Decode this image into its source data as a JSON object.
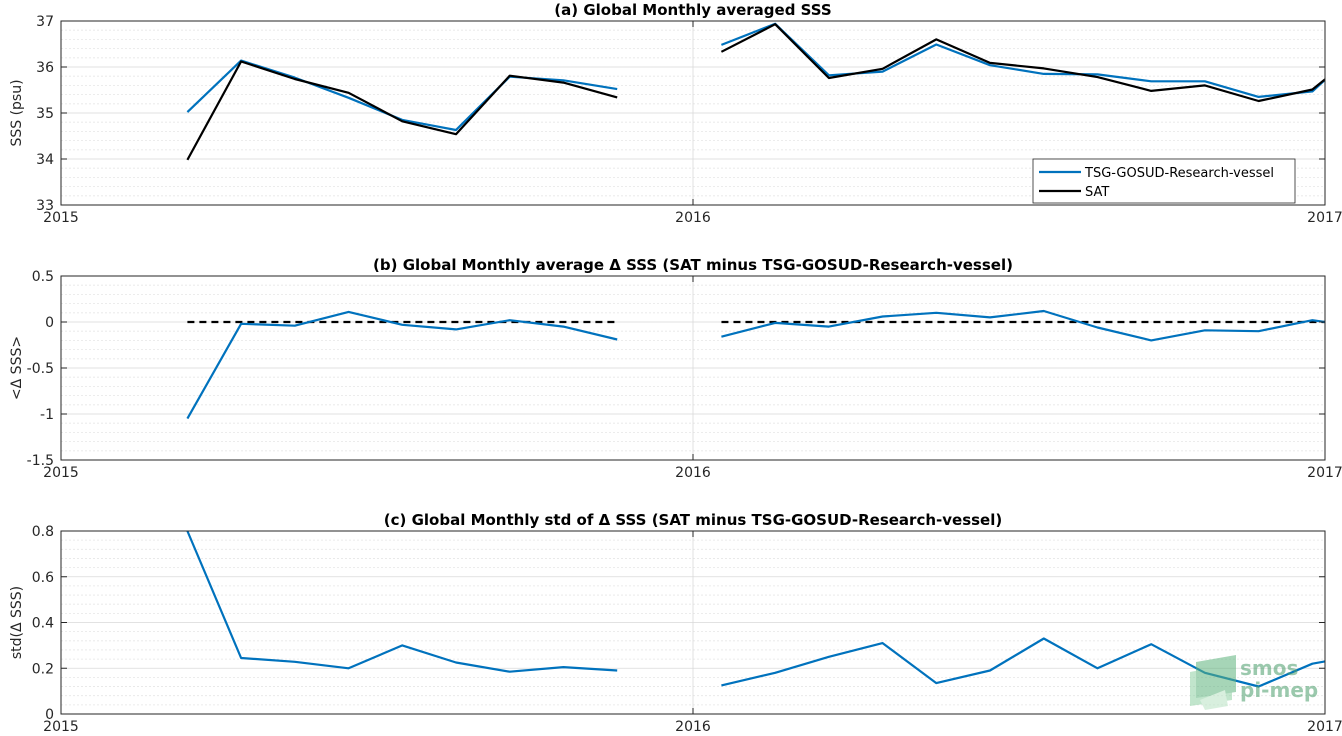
{
  "colors": {
    "tsg": "#0072BD",
    "sat": "#000000",
    "zero": "#000000",
    "grid": "#d9d9d9",
    "logo": "#4a9d6b"
  },
  "logo": {
    "line1": "smos",
    "line2": "pi-mep"
  },
  "chart_data": [
    {
      "id": "a",
      "type": "line",
      "title": "(a) Global Monthly averaged SSS",
      "ylabel": "SSS (psu)",
      "xlabel": "",
      "xlim": [
        2015,
        2017
      ],
      "ylim": [
        33,
        37
      ],
      "xticks": [
        2015,
        2016,
        2017
      ],
      "xtick_labels": [
        "2015",
        "2016",
        "2017"
      ],
      "yticks": [
        33,
        34,
        35,
        36,
        37
      ],
      "ytick_labels": [
        "33",
        "34",
        "35",
        "36",
        "37"
      ],
      "grid": "on",
      "legend": {
        "location": "bottom-right",
        "entries": [
          "TSG-GOSUD-Research-vessel",
          "SAT"
        ]
      },
      "series": [
        {
          "name": "TSG-GOSUD-Research-vessel",
          "color": "#0072BD",
          "segments": [
            [
              [
                2015.2,
                35.02
              ],
              [
                2015.285,
                36.14
              ],
              [
                2015.37,
                35.77
              ],
              [
                2015.455,
                35.33
              ],
              [
                2015.54,
                34.85
              ],
              [
                2015.625,
                34.63
              ],
              [
                2015.71,
                35.79
              ],
              [
                2015.795,
                35.71
              ],
              [
                2015.88,
                35.52
              ]
            ],
            [
              [
                2016.045,
                36.48
              ],
              [
                2016.13,
                36.94
              ],
              [
                2016.215,
                35.82
              ],
              [
                2016.3,
                35.9
              ],
              [
                2016.385,
                36.49
              ],
              [
                2016.47,
                36.04
              ],
              [
                2016.555,
                35.85
              ],
              [
                2016.64,
                35.84
              ],
              [
                2016.725,
                35.69
              ],
              [
                2016.81,
                35.69
              ],
              [
                2016.895,
                35.35
              ],
              [
                2016.98,
                35.47
              ],
              [
                2017.0,
                35.72
              ]
            ]
          ]
        },
        {
          "name": "SAT",
          "color": "#000000",
          "segments": [
            [
              [
                2015.2,
                33.98
              ],
              [
                2015.285,
                36.12
              ],
              [
                2015.37,
                35.74
              ],
              [
                2015.455,
                35.44
              ],
              [
                2015.54,
                34.82
              ],
              [
                2015.625,
                34.54
              ],
              [
                2015.71,
                35.81
              ],
              [
                2015.795,
                35.66
              ],
              [
                2015.88,
                35.34
              ]
            ],
            [
              [
                2016.045,
                36.33
              ],
              [
                2016.13,
                36.93
              ],
              [
                2016.215,
                35.76
              ],
              [
                2016.3,
                35.96
              ],
              [
                2016.385,
                36.6
              ],
              [
                2016.47,
                36.09
              ],
              [
                2016.555,
                35.97
              ],
              [
                2016.64,
                35.78
              ],
              [
                2016.725,
                35.48
              ],
              [
                2016.81,
                35.6
              ],
              [
                2016.895,
                35.26
              ],
              [
                2016.98,
                35.51
              ],
              [
                2017.0,
                35.73
              ]
            ]
          ]
        }
      ]
    },
    {
      "id": "b",
      "type": "line",
      "title": "(b) Global Monthly average Δ SSS (SAT minus TSG-GOSUD-Research-vessel)",
      "ylabel": "<Δ SSS>",
      "xlabel": "",
      "xlim": [
        2015,
        2017
      ],
      "ylim": [
        -1.5,
        0.5
      ],
      "xticks": [
        2015,
        2016,
        2017
      ],
      "xtick_labels": [
        "2015",
        "2016",
        "2017"
      ],
      "yticks": [
        -1.5,
        -1,
        -0.5,
        0,
        0.5
      ],
      "ytick_labels": [
        "-1.5",
        "-1",
        "-0.5",
        "0",
        "0.5"
      ],
      "grid": "on",
      "legend": null,
      "zero_lines": [
        [
          2015.2,
          2015.88
        ],
        [
          2016.045,
          2017.0
        ]
      ],
      "series": [
        {
          "name": "",
          "color": "#0072BD",
          "segments": [
            [
              [
                2015.2,
                -1.05
              ],
              [
                2015.285,
                -0.02
              ],
              [
                2015.37,
                -0.04
              ],
              [
                2015.455,
                0.11
              ],
              [
                2015.54,
                -0.03
              ],
              [
                2015.625,
                -0.08
              ],
              [
                2015.71,
                0.02
              ],
              [
                2015.795,
                -0.05
              ],
              [
                2015.88,
                -0.19
              ]
            ],
            [
              [
                2016.045,
                -0.16
              ],
              [
                2016.13,
                -0.01
              ],
              [
                2016.215,
                -0.05
              ],
              [
                2016.3,
                0.06
              ],
              [
                2016.385,
                0.1
              ],
              [
                2016.47,
                0.05
              ],
              [
                2016.555,
                0.12
              ],
              [
                2016.64,
                -0.06
              ],
              [
                2016.725,
                -0.2
              ],
              [
                2016.81,
                -0.09
              ],
              [
                2016.895,
                -0.1
              ],
              [
                2016.98,
                0.02
              ],
              [
                2017.0,
                0.0
              ]
            ]
          ]
        }
      ]
    },
    {
      "id": "c",
      "type": "line",
      "title": "(c) Global Monthly std of Δ SSS (SAT minus TSG-GOSUD-Research-vessel)",
      "ylabel": "std(Δ SSS)",
      "xlabel": "",
      "xlim": [
        2015,
        2017
      ],
      "ylim": [
        0,
        0.8
      ],
      "xticks": [
        2015,
        2016,
        2017
      ],
      "xtick_labels": [
        "2015",
        "2016",
        "2017"
      ],
      "yticks": [
        0,
        0.2,
        0.4,
        0.6,
        0.8
      ],
      "ytick_labels": [
        "0",
        "0.2",
        "0.4",
        "0.6",
        "0.8"
      ],
      "grid": "on",
      "legend": null,
      "series": [
        {
          "name": "",
          "color": "#0072BD",
          "segments": [
            [
              [
                2015.2,
                0.8
              ],
              [
                2015.285,
                0.245
              ],
              [
                2015.37,
                0.228
              ],
              [
                2015.455,
                0.2
              ],
              [
                2015.54,
                0.3
              ],
              [
                2015.625,
                0.225
              ],
              [
                2015.71,
                0.185
              ],
              [
                2015.795,
                0.205
              ],
              [
                2015.88,
                0.19
              ]
            ],
            [
              [
                2016.045,
                0.125
              ],
              [
                2016.13,
                0.18
              ],
              [
                2016.215,
                0.25
              ],
              [
                2016.3,
                0.31
              ],
              [
                2016.385,
                0.135
              ],
              [
                2016.47,
                0.19
              ],
              [
                2016.555,
                0.33
              ],
              [
                2016.64,
                0.2
              ],
              [
                2016.725,
                0.305
              ],
              [
                2016.81,
                0.18
              ],
              [
                2016.895,
                0.12
              ],
              [
                2016.98,
                0.22
              ],
              [
                2017.0,
                0.23
              ]
            ]
          ]
        }
      ]
    }
  ]
}
